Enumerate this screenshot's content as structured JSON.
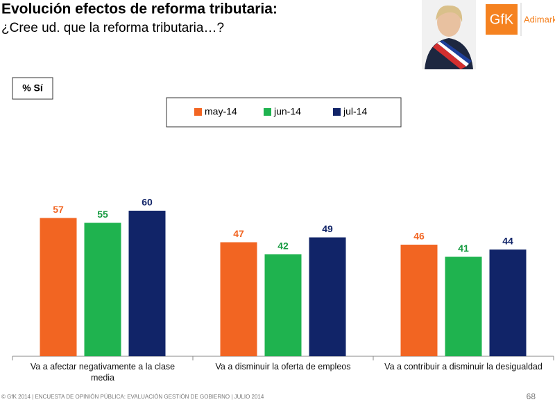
{
  "header": {
    "title": "Evolución efectos de reforma tributaria:",
    "subtitle": "¿Cree ud. que la reforma tributaria…?"
  },
  "logo": {
    "mark": "GfK",
    "name": "Adimark"
  },
  "chart_data": {
    "type": "bar",
    "y_label": "% Sí",
    "categories": [
      "Va a afectar negativamente a la clase media",
      "Va a disminuir la oferta de empleos",
      "Va a contribuir a disminuir la desigualdad"
    ],
    "series": [
      {
        "name": "may-14",
        "color": "#f26522",
        "values": [
          57,
          47,
          46
        ]
      },
      {
        "name": "jun-14",
        "color": "#1fb34f",
        "values": [
          55,
          42,
          41
        ]
      },
      {
        "name": "jul-14",
        "color": "#112468",
        "values": [
          60,
          49,
          44
        ]
      }
    ]
  },
  "footer": {
    "text": "© GfK 2014 | ENCUESTA DE OPINIÓN PÚBLICA: EVALUACIÓN GESTIÓN DE GOBIERNO | JULIO 2014",
    "page": "68"
  }
}
